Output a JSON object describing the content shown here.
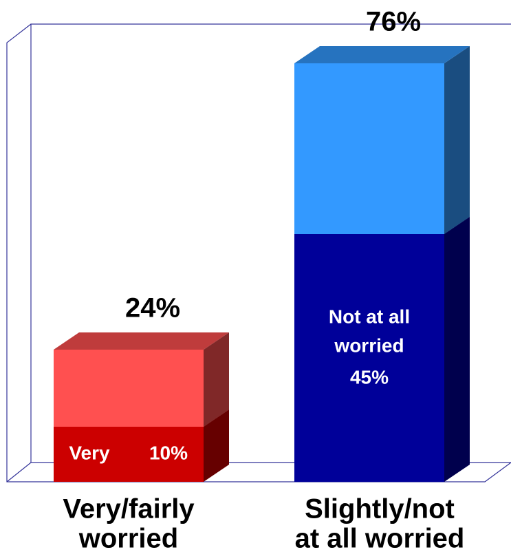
{
  "chart_data": {
    "type": "bar",
    "stacked": true,
    "categories": [
      [
        "Very/fairly",
        "worried"
      ],
      [
        "Slightly/not",
        "at all worried"
      ]
    ],
    "series": [
      {
        "name": [
          "Very"
        ],
        "color": "#cc0000",
        "values": [
          10,
          null
        ],
        "value_labels": [
          "10%",
          null
        ]
      },
      {
        "color": "#ff5050",
        "values": [
          14,
          null
        ]
      },
      {
        "name": [
          "Not at all",
          "worried"
        ],
        "color": "#000099",
        "values": [
          null,
          45
        ],
        "value_labels": [
          null,
          "45%"
        ]
      },
      {
        "color": "#3399ff",
        "values": [
          null,
          31
        ]
      }
    ],
    "totals": [
      24,
      76
    ],
    "total_labels": [
      "24%",
      "76%"
    ]
  }
}
